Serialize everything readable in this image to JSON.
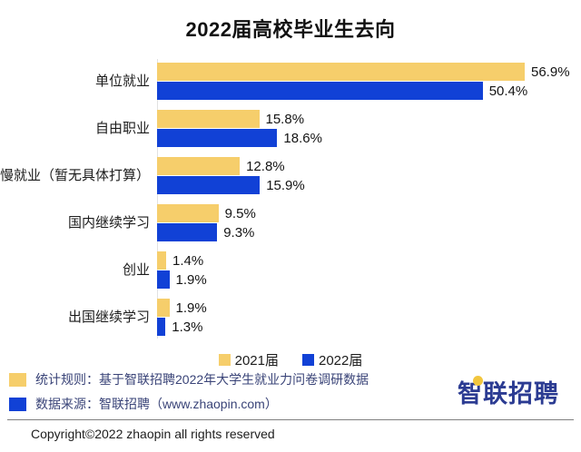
{
  "title": "2022届高校毕业生去向",
  "chart_data": {
    "type": "bar",
    "orientation": "horizontal",
    "title": "2022届高校毕业生去向",
    "categories": [
      "单位就业",
      "自由职业",
      "慢就业（暂无具体打算）",
      "国内继续学习",
      "创业",
      "出国继续学习"
    ],
    "series": [
      {
        "name": "2021届",
        "color": "#f6ce6b",
        "values": [
          56.9,
          15.8,
          12.8,
          9.5,
          1.4,
          1.9
        ]
      },
      {
        "name": "2022届",
        "color": "#1141d6",
        "values": [
          50.4,
          18.6,
          15.9,
          9.3,
          1.9,
          1.3
        ]
      }
    ],
    "value_suffix": "%",
    "xlim": [
      0,
      60
    ],
    "grid": false,
    "legend_position": "bottom",
    "value_labels": "outside-end"
  },
  "notes": [
    {
      "color": "#f6ce6b",
      "text": "统计规则：基于智联招聘2022年大学生就业力问卷调研数据"
    },
    {
      "color": "#1141d6",
      "text": "数据来源：智联招聘（www.zhaopin.com）"
    }
  ],
  "logo": {
    "first_char": "智",
    "rest": "联招聘"
  },
  "copyright": "Copyright©2022 zhaopin all rights reserved"
}
